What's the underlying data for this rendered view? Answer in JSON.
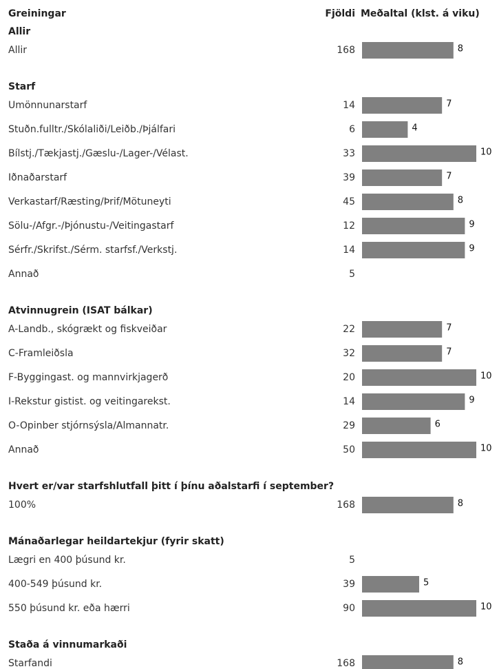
{
  "header": {
    "label": "Greiningar",
    "count": "Fjöldi",
    "mean": "Meðaltal (klst. á viku)"
  },
  "xlim": [
    0,
    10
  ],
  "bar_color": "#808080",
  "groups": [
    {
      "title": "Allir",
      "rows": [
        {
          "label": "Allir",
          "count": 168,
          "mean": 8
        }
      ]
    },
    {
      "title": "Starf",
      "rows": [
        {
          "label": "Umönnunarstarf",
          "count": 14,
          "mean": 7
        },
        {
          "label": "Stuðn.fulltr./Skólaliði/Leiðb./Þjálfari",
          "count": 6,
          "mean": 4
        },
        {
          "label": "Bílstj./Tækjastj./Gæslu-/Lager-/Vélast.",
          "count": 33,
          "mean": 10
        },
        {
          "label": "Iðnaðarstarf",
          "count": 39,
          "mean": 7
        },
        {
          "label": "Verkastarf/Ræsting/Þrif/Mötuneyti",
          "count": 45,
          "mean": 8
        },
        {
          "label": "Sölu-/Afgr.-/Þjónustu-/Veitingastarf",
          "count": 12,
          "mean": 9
        },
        {
          "label": "Sérfr./Skrifst./Sérm. starfsf./Verkstj.",
          "count": 14,
          "mean": 9
        },
        {
          "label": "Annað",
          "count": 5,
          "mean": null
        }
      ]
    },
    {
      "title": "Atvinnugrein (ISAT bálkar)",
      "rows": [
        {
          "label": "A-Landb., skógrækt og fiskveiðar",
          "count": 22,
          "mean": 7
        },
        {
          "label": "C-Framleiðsla",
          "count": 32,
          "mean": 7
        },
        {
          "label": "F-Byggingast. og mannvirkjagerð",
          "count": 20,
          "mean": 10
        },
        {
          "label": "I-Rekstur gistist. og veitingarekst.",
          "count": 14,
          "mean": 9
        },
        {
          "label": "O-Opinber stjórnsýsla/Almannatr.",
          "count": 29,
          "mean": 6
        },
        {
          "label": "Annað",
          "count": 50,
          "mean": 10
        }
      ]
    },
    {
      "title": "Hvert er/var starfshlutfall þitt í þínu aðalstarfi í september?",
      "rows": [
        {
          "label": "100%",
          "count": 168,
          "mean": 8
        }
      ]
    },
    {
      "title": "Mánaðarlegar heildartekjur (fyrir skatt)",
      "rows": [
        {
          "label": "Lægri en 400 þúsund kr.",
          "count": 5,
          "mean": null
        },
        {
          "label": "400-549 þúsund kr.",
          "count": 39,
          "mean": 5
        },
        {
          "label": "550 þúsund kr. eða hærri",
          "count": 90,
          "mean": 10
        }
      ]
    },
    {
      "title": "Staða á vinnumarkaði",
      "rows": [
        {
          "label": "Starfandi",
          "count": 168,
          "mean": 8
        }
      ]
    }
  ]
}
